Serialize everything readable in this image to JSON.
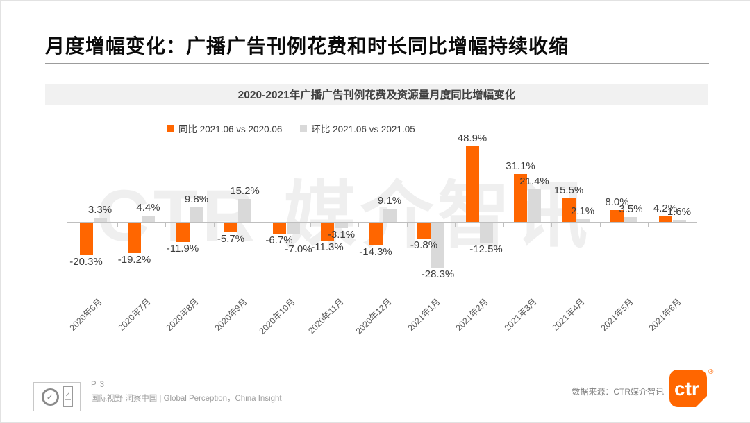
{
  "page": {
    "title": "月度增幅变化：广播广告刊例花费和时长同比增幅持续收缩",
    "watermark": "CTR 媒介智讯",
    "accent_color": "#FF6600"
  },
  "footer": {
    "page_number": "P 3",
    "tagline": "国际视野 洞察中国 | Global Perception，China Insight",
    "source": "数据来源：CTR媒介智讯",
    "logo_text": "ctr",
    "logo_registered": "®",
    "icons": [
      "sgs-certification-icon",
      "quality-badge-icon"
    ],
    "cert_check": "✓"
  },
  "chart_data": {
    "type": "bar",
    "title": "2020-2021年广播广告刊例花费及资源量月度同比增幅变化",
    "categories": [
      "2020年6月",
      "2020年7月",
      "2020年8月",
      "2020年9月",
      "2020年10月",
      "2020年11月",
      "2020年12月",
      "2021年1月",
      "2021年2月",
      "2021年3月",
      "2021年4月",
      "2021年5月",
      "2021年6月"
    ],
    "series": [
      {
        "name": "同比 2021.06 vs 2020.06",
        "color": "#FF6600",
        "values": [
          -20.3,
          -19.2,
          -11.9,
          -5.7,
          -6.7,
          -11.3,
          -14.3,
          -9.8,
          48.9,
          31.1,
          15.5,
          8.0,
          4.2
        ]
      },
      {
        "name": "环比 2021.06 vs 2021.05",
        "color": "#D9D9D9",
        "values": [
          3.3,
          4.4,
          9.8,
          15.2,
          -7.0,
          -3.1,
          9.1,
          -28.3,
          -12.5,
          21.4,
          2.1,
          3.5,
          1.6
        ]
      }
    ],
    "value_suffix": "%",
    "ylim": [
      -30,
      50
    ],
    "y_axis_visible": false,
    "grid": false,
    "legend_position": "top",
    "axis_color": "#BFBFBF"
  }
}
